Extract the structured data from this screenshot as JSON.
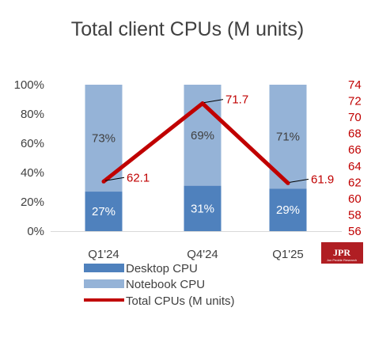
{
  "chart_data": {
    "type": "bar",
    "title": "Total client CPUs (M units)",
    "categories": [
      "Q1'24",
      "Q4'24",
      "Q1'25"
    ],
    "series": [
      {
        "name": "Desktop CPU",
        "kind": "stacked-bar",
        "values": [
          27,
          31,
          29
        ],
        "labels": [
          "27%",
          "31%",
          "29%"
        ],
        "color": "#4f81bd"
      },
      {
        "name": "Notebook CPU",
        "kind": "stacked-bar",
        "values": [
          73,
          69,
          71
        ],
        "labels": [
          "73%",
          "69%",
          "71%"
        ],
        "color": "#95b3d7"
      },
      {
        "name": "Total CPUs (M units)",
        "kind": "line",
        "axis": "right",
        "values": [
          62.1,
          71.7,
          61.9
        ],
        "labels": [
          "62.1",
          "71.7",
          "61.9"
        ],
        "color": "#c00000"
      }
    ],
    "y_left": {
      "ylim": [
        0,
        100
      ],
      "ticks": [
        "0%",
        "20%",
        "40%",
        "60%",
        "80%",
        "100%"
      ]
    },
    "y_right": {
      "ylim": [
        56,
        74
      ],
      "ticks": [
        "56",
        "58",
        "60",
        "62",
        "64",
        "66",
        "68",
        "70",
        "72",
        "74"
      ],
      "color": "#c00000"
    },
    "grid": false,
    "legend": "bottom"
  },
  "logo": {
    "text": "JPR",
    "subtext": "Jon Peddie Research"
  }
}
